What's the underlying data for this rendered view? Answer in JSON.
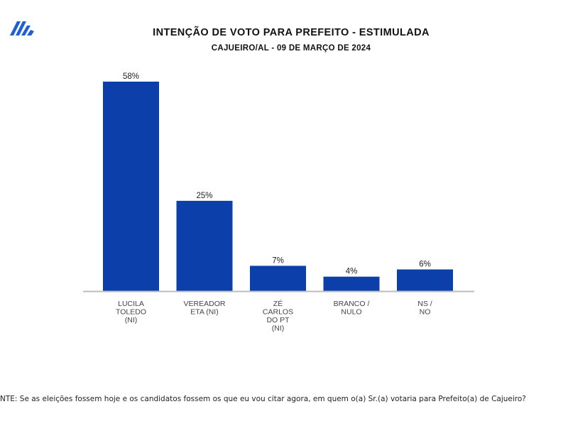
{
  "brand_color": "#0d3fab",
  "footnote": "NTE: Se as eleições fossem hoje e os candidatos fossem os que eu vou citar agora, em quem o(a) Sr.(a) votaria para Prefeito(a) de Cajueiro?",
  "chart_data": {
    "type": "bar",
    "title": "INTENÇÃO DE VOTO PARA PREFEITO - ESTIMULADA",
    "subtitle": "CAJUEIRO/AL - 09 DE MARÇO DE 2024",
    "categories": [
      [
        "LUCILA",
        "TOLEDO",
        "(NI)"
      ],
      [
        "VEREADOR",
        "ETA (NI)"
      ],
      [
        "ZÉ",
        "CARLOS",
        "DO PT",
        "(NI)"
      ],
      [
        "BRANCO /",
        "NULO"
      ],
      [
        "NS /",
        "NO"
      ]
    ],
    "values": [
      58,
      25,
      7,
      4,
      6
    ],
    "value_labels": [
      "58%",
      "25%",
      "7%",
      "4%",
      "6%"
    ],
    "ylim": [
      0,
      60
    ],
    "grid": false,
    "bar_color": "#0d3fab"
  }
}
